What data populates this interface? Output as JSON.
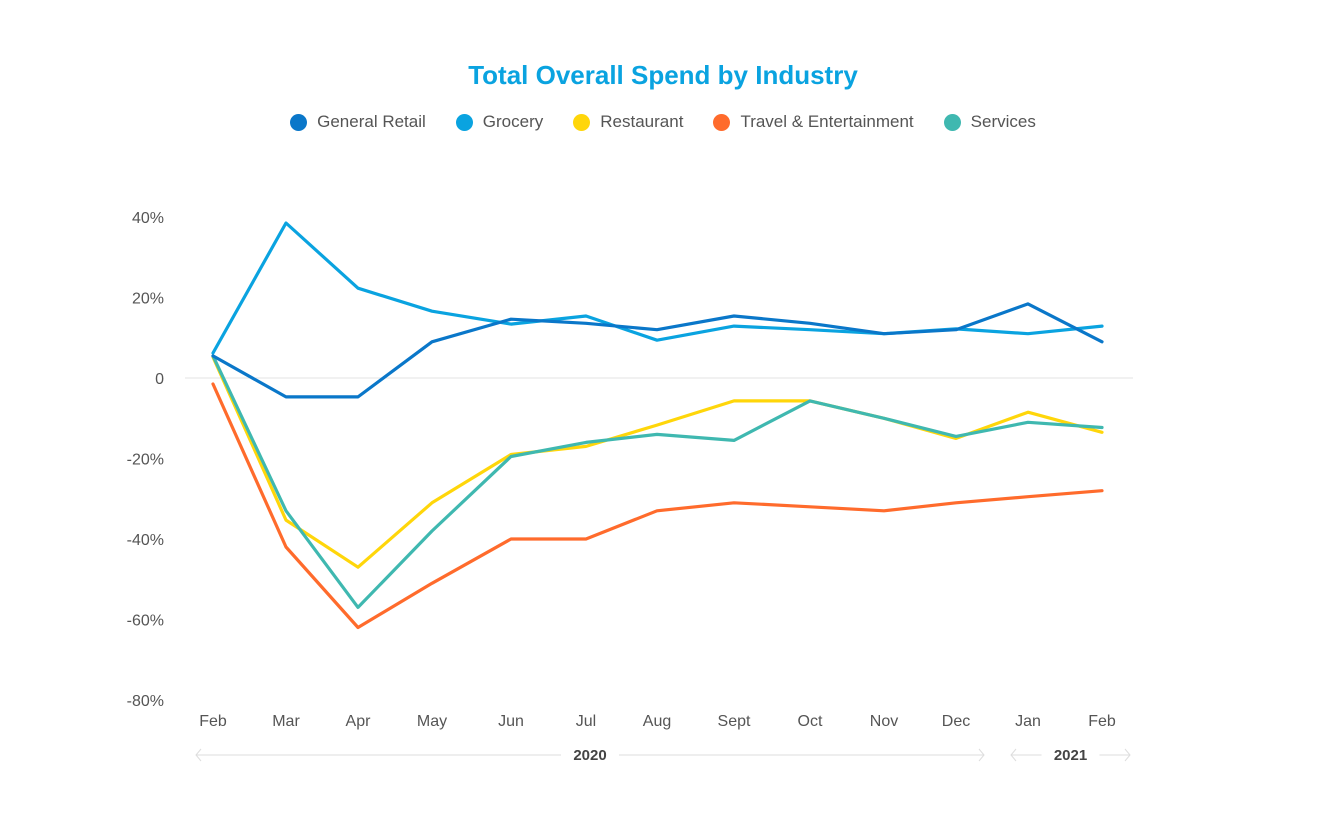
{
  "chart_data": {
    "type": "line",
    "title": "Total Overall Spend by Industry",
    "categories": [
      "Feb",
      "Mar",
      "Apr",
      "May",
      "Jun",
      "Jul",
      "Aug",
      "Sept",
      "Oct",
      "Nov",
      "Dec",
      "Jan",
      "Feb"
    ],
    "year_groups": [
      {
        "label": "2020",
        "from": 0,
        "to": 10
      },
      {
        "label": "2021",
        "from": 11,
        "to": 12
      }
    ],
    "y_ticks": [
      {
        "v": 40,
        "label": "40%"
      },
      {
        "v": 20,
        "label": "20%"
      },
      {
        "v": 0,
        "label": "0"
      },
      {
        "v": -20,
        "label": "-20%"
      },
      {
        "v": -40,
        "label": "-40%"
      },
      {
        "v": -60,
        "label": "-60%"
      },
      {
        "v": -80,
        "label": "-80%"
      }
    ],
    "ylim": [
      -80,
      40
    ],
    "unit": "%",
    "legend_position": "top-center",
    "grid": "zero line only",
    "series": [
      {
        "name": "General Retail",
        "color": "#0a77c9",
        "values": [
          5.5,
          -4.7,
          -4.7,
          9,
          14.6,
          13.6,
          12,
          15.4,
          13.6,
          11,
          12,
          18.4,
          9
        ]
      },
      {
        "name": "Grocery",
        "color": "#0aa3e0",
        "values": [
          6.2,
          38.5,
          22.3,
          16.6,
          13.4,
          15.4,
          9.4,
          12.9,
          12,
          11,
          12.2,
          11,
          12.9
        ]
      },
      {
        "name": "Restaurant",
        "color": "#ffd60a",
        "values": [
          5.2,
          -35.3,
          -47,
          -31,
          -19,
          -17,
          -11.7,
          -5.7,
          -5.7,
          -10,
          -15,
          -8.5,
          -13.5
        ]
      },
      {
        "name": "Travel & Entertainment",
        "color": "#ff6b2c",
        "values": [
          -1.5,
          -42,
          -62,
          -51,
          -40,
          -40,
          -33,
          -31,
          -32,
          -33,
          -31,
          -29.5,
          -28
        ]
      },
      {
        "name": "Services",
        "color": "#3fb8b0",
        "values": [
          5.5,
          -33,
          -57,
          -38,
          -19.5,
          -16,
          -14,
          -15.5,
          -5.7,
          -10,
          -14.5,
          -11,
          -12.3
        ]
      }
    ]
  }
}
